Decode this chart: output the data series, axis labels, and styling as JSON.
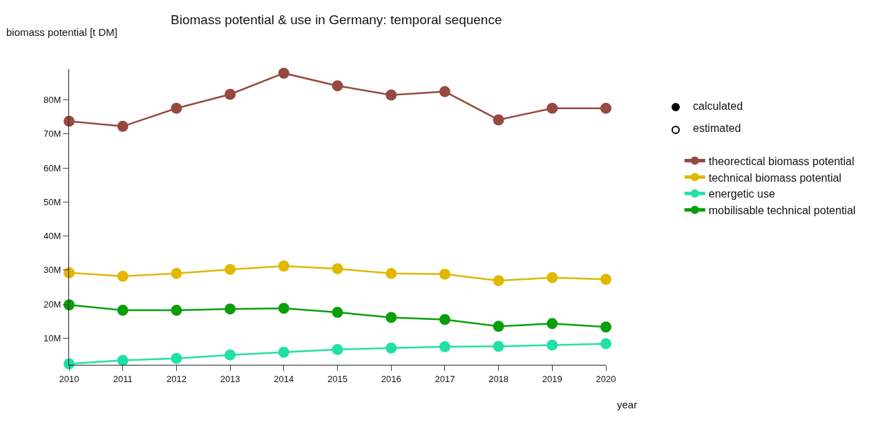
{
  "chart_data": {
    "type": "line",
    "title": "Biomass potential & use in Germany: temporal sequence",
    "xlabel": "year",
    "ylabel": "biomass potential [t DM]",
    "x": [
      2010,
      2011,
      2012,
      2013,
      2014,
      2015,
      2016,
      2017,
      2018,
      2019,
      2020
    ],
    "xlim": [
      2010,
      2020
    ],
    "xticks": [
      2010,
      2011,
      2012,
      2013,
      2014,
      2015,
      2016,
      2017,
      2018,
      2019,
      2020
    ],
    "ylim": [
      2200000,
      89000000
    ],
    "yticks": [
      {
        "value": 10000000,
        "label": "10M"
      },
      {
        "value": 20000000,
        "label": "20M"
      },
      {
        "value": 30000000,
        "label": "30M"
      },
      {
        "value": 40000000,
        "label": "40M"
      },
      {
        "value": 50000000,
        "label": "50M"
      },
      {
        "value": 60000000,
        "label": "60M"
      },
      {
        "value": 70000000,
        "label": "70M"
      },
      {
        "value": 80000000,
        "label": "80M"
      }
    ],
    "marker": "circle",
    "line_style": "solid",
    "legend": "top right",
    "annotations": [
      "calculated",
      "estimated"
    ],
    "series": [
      {
        "name": "theorectical biomass potential",
        "color": "#96493f",
        "values": [
          73700000,
          72200000,
          77500000,
          81600000,
          87800000,
          84100000,
          81400000,
          82400000,
          74100000,
          77500000,
          77500000
        ]
      },
      {
        "name": "technical biomass potential",
        "color": "#e0b800",
        "values": [
          29200000,
          28200000,
          29000000,
          30200000,
          31200000,
          30400000,
          29000000,
          28800000,
          26900000,
          27800000,
          27300000
        ]
      },
      {
        "name": "energetic use",
        "color": "#20e0a8",
        "values": [
          2500000,
          3500000,
          4100000,
          5100000,
          5900000,
          6700000,
          7100000,
          7500000,
          7600000,
          8000000,
          8400000
        ]
      },
      {
        "name": "mobilisable technical potential",
        "color": "#0a9e0a",
        "values": [
          19800000,
          18200000,
          18200000,
          18600000,
          18800000,
          17600000,
          16100000,
          15500000,
          13500000,
          14300000,
          13300000
        ]
      }
    ]
  }
}
